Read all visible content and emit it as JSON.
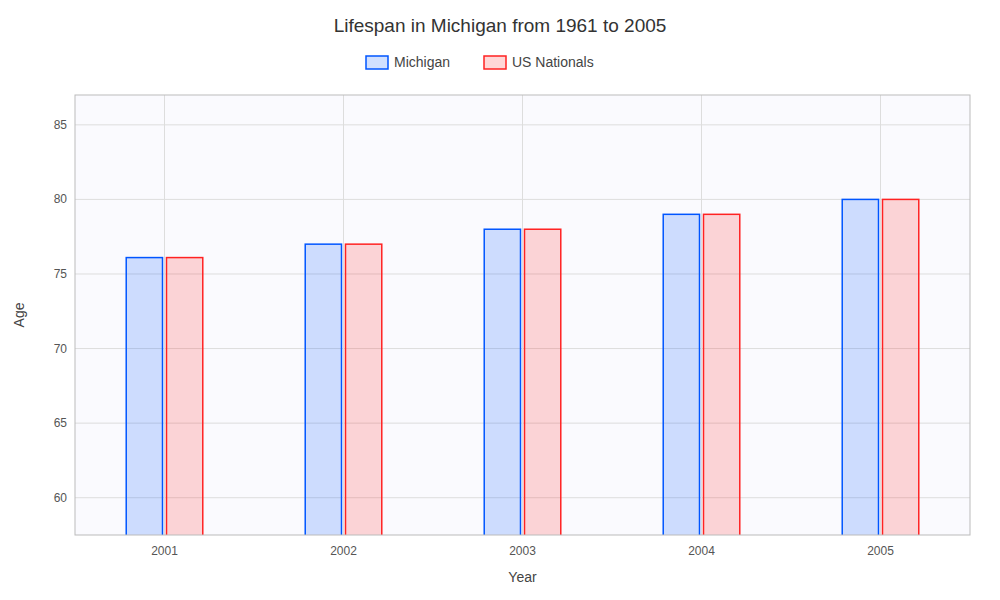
{
  "chart_data": {
    "type": "bar",
    "title": "Lifespan in Michigan from 1961 to 2005",
    "x_label": "Year",
    "y_label": "Age",
    "categories": [
      "2001",
      "2002",
      "2003",
      "2004",
      "2005"
    ],
    "series": [
      {
        "name": "Michigan",
        "color": "#0055ff",
        "values": [
          76.1,
          77.0,
          78.0,
          79.0,
          80.0
        ]
      },
      {
        "name": "US Nationals",
        "color": "#ff2222",
        "values": [
          76.1,
          77.0,
          78.0,
          79.0,
          80.0
        ]
      }
    ],
    "ylim": [
      57.5,
      87
    ],
    "yticks": [
      60,
      65,
      70,
      75,
      80,
      85
    ],
    "grid": true,
    "legend": "top"
  }
}
